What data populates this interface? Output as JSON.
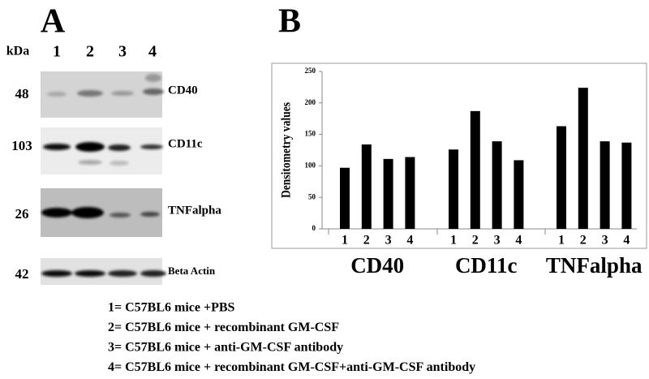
{
  "panel_a": {
    "label": "A",
    "kda_label": "kDa",
    "lanes": [
      "1",
      "2",
      "3",
      "4"
    ],
    "blots": [
      {
        "kda": "48",
        "name": "CD40"
      },
      {
        "kda": "103",
        "name": "CD11c"
      },
      {
        "kda": "26",
        "name": "TNFalpha"
      },
      {
        "kda": "42",
        "name": "Beta Actin"
      }
    ]
  },
  "chart_data": {
    "type": "bar",
    "panel_label": "B",
    "y_label": "Densitometry values",
    "color": "#000000",
    "ylim": [
      0,
      250
    ],
    "yticks": [
      0,
      50,
      100,
      150,
      200,
      250
    ],
    "groups": [
      {
        "name": "CD40",
        "categories": [
          "1",
          "2",
          "3",
          "4"
        ],
        "values": [
          97,
          134,
          111,
          114
        ]
      },
      {
        "name": "CD11c",
        "categories": [
          "1",
          "2",
          "3",
          "4"
        ],
        "values": [
          126,
          187,
          139,
          109
        ]
      },
      {
        "name": "TNFalpha",
        "categories": [
          "1",
          "2",
          "3",
          "4"
        ],
        "values": [
          163,
          224,
          139,
          137
        ]
      }
    ]
  },
  "legend": [
    "1= C57BL6 mice +PBS",
    "2= C57BL6 mice + recombinant GM-CSF",
    "3= C57BL6 mice + anti-GM-CSF antibody",
    "4= C57BL6 mice + recombinant GM-CSF+anti-GM-CSF antibody"
  ]
}
